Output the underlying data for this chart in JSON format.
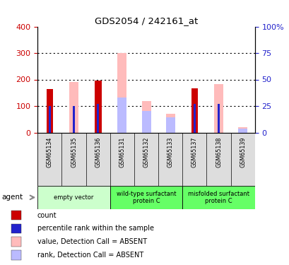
{
  "title": "GDS2054 / 242161_at",
  "samples": [
    "GSM65134",
    "GSM65135",
    "GSM65136",
    "GSM65131",
    "GSM65132",
    "GSM65133",
    "GSM65137",
    "GSM65138",
    "GSM65139"
  ],
  "count_values": [
    163,
    0,
    195,
    0,
    0,
    0,
    167,
    0,
    0
  ],
  "rank_values": [
    100,
    100,
    108,
    0,
    0,
    0,
    108,
    108,
    0
  ],
  "absent_value_bars": [
    0,
    190,
    0,
    300,
    120,
    70,
    0,
    182,
    20
  ],
  "absent_rank_bars": [
    0,
    0,
    0,
    133,
    82,
    57,
    0,
    0,
    15
  ],
  "ylim_left": [
    0,
    400
  ],
  "ylim_right": [
    0,
    100
  ],
  "yticks_left": [
    0,
    100,
    200,
    300,
    400
  ],
  "yticks_right": [
    0,
    25,
    50,
    75,
    100
  ],
  "ytick_labels_left": [
    "0",
    "100",
    "200",
    "300",
    "400"
  ],
  "ytick_labels_right": [
    "0",
    "25",
    "50",
    "75",
    "100%"
  ],
  "color_count": "#cc0000",
  "color_rank": "#2222cc",
  "color_absent_value": "#ffbbbb",
  "color_absent_rank": "#bbbbff",
  "groups_info": [
    {
      "start": 0,
      "end": 2,
      "label": "empty vector",
      "color": "#ccffcc"
    },
    {
      "start": 3,
      "end": 5,
      "label": "wild-type surfactant\nprotein C",
      "color": "#66ff66"
    },
    {
      "start": 6,
      "end": 8,
      "label": "misfolded surfactant\nprotein C",
      "color": "#66ff66"
    }
  ],
  "legend_items": [
    {
      "color": "#cc0000",
      "label": "count"
    },
    {
      "color": "#2222cc",
      "label": "percentile rank within the sample"
    },
    {
      "color": "#ffbbbb",
      "label": "value, Detection Call = ABSENT"
    },
    {
      "color": "#bbbbff",
      "label": "rank, Detection Call = ABSENT"
    }
  ],
  "agent_label": "agent",
  "grid_dotted_at": [
    100,
    200,
    300
  ]
}
